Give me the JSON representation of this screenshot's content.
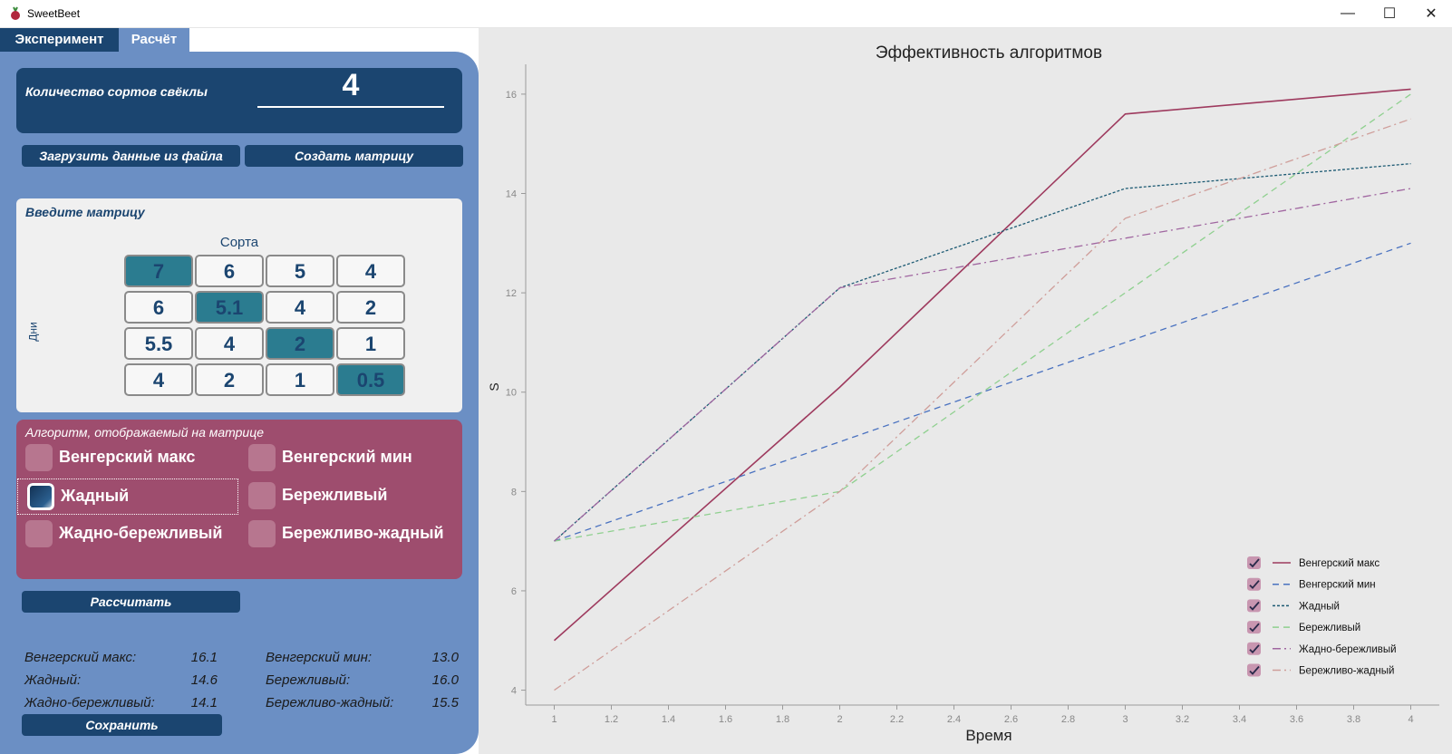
{
  "window": {
    "title": "SweetBeet"
  },
  "tabs": [
    {
      "label": "Эксперимент"
    },
    {
      "label": "Расчёт"
    }
  ],
  "count": {
    "label": "Количество сортов свёклы",
    "value": "4"
  },
  "buttons": {
    "load": "Загрузить данные из файла",
    "create": "Создать матрицу",
    "calculate": "Рассчитать",
    "save": "Сохранить"
  },
  "matrix": {
    "title": "Введите матрицу",
    "columns_label": "Сорта",
    "rows_label": "Дни",
    "rows": [
      [
        "7",
        "6",
        "5",
        "4"
      ],
      [
        "6",
        "5.1",
        "4",
        "2"
      ],
      [
        "5.5",
        "4",
        "2",
        "1"
      ],
      [
        "4",
        "2",
        "1",
        "0.5"
      ]
    ],
    "highlighted": [
      [
        0,
        0
      ],
      [
        1,
        1
      ],
      [
        2,
        2
      ],
      [
        3,
        3
      ]
    ]
  },
  "algorithms": {
    "title": "Алгоритм, отображаемый на матрице",
    "items": [
      {
        "label": "Венгерский макс",
        "checked": false
      },
      {
        "label": "Венгерский мин",
        "checked": false
      },
      {
        "label": "Жадный",
        "checked": true
      },
      {
        "label": "Бережливый",
        "checked": false
      },
      {
        "label": "Жадно-бережливый",
        "checked": false
      },
      {
        "label": "Бережливо-жадный",
        "checked": false
      }
    ]
  },
  "results": [
    {
      "name": "Венгерский макс:",
      "value": "16.1"
    },
    {
      "name": "Венгерский мин:",
      "value": "13.0"
    },
    {
      "name": "Жадный:",
      "value": "14.6"
    },
    {
      "name": "Бережливый:",
      "value": "16.0"
    },
    {
      "name": "Жадно-бережливый:",
      "value": "14.1"
    },
    {
      "name": "Бережливо-жадный:",
      "value": "15.5"
    }
  ],
  "chart_data": {
    "type": "line",
    "title": "Эффективность алгоритмов",
    "xlabel": "Время",
    "ylabel": "S",
    "x": [
      1,
      2,
      3,
      4
    ],
    "xlim": [
      0.9,
      4.1
    ],
    "ylim": [
      3.7,
      16.6
    ],
    "xticks": [
      "1",
      "1.2",
      "1.4",
      "1.6",
      "1.8",
      "2",
      "2.2",
      "2.4",
      "2.6",
      "2.8",
      "3",
      "3.2",
      "3.4",
      "3.6",
      "3.8",
      "4"
    ],
    "yticks": [
      "4",
      "6",
      "8",
      "10",
      "12",
      "14",
      "16"
    ],
    "legend_position": "bottom-right",
    "grid": false,
    "series": [
      {
        "name": "Венгерский макс",
        "values": [
          5,
          10.1,
          15.6,
          16.1
        ],
        "color": "#9e3a5e",
        "dash": "solid"
      },
      {
        "name": "Венгерский мин",
        "values": [
          7,
          9,
          11,
          13
        ],
        "color": "#4a72c0",
        "dash": "dashed"
      },
      {
        "name": "Жадный",
        "values": [
          7,
          12.1,
          14.1,
          14.6
        ],
        "color": "#1c5a73",
        "dash": "dotted"
      },
      {
        "name": "Бережливый",
        "values": [
          7,
          8,
          12,
          16
        ],
        "color": "#8fd08f",
        "dash": "dashed"
      },
      {
        "name": "Жадно-бережливый",
        "values": [
          7,
          12.1,
          13.1,
          14.1
        ],
        "color": "#a066a0",
        "dash": "dashdot"
      },
      {
        "name": "Бережливо-жадный",
        "values": [
          4,
          8,
          13.5,
          15.5
        ],
        "color": "#cf9e9a",
        "dash": "dashdot"
      }
    ]
  }
}
